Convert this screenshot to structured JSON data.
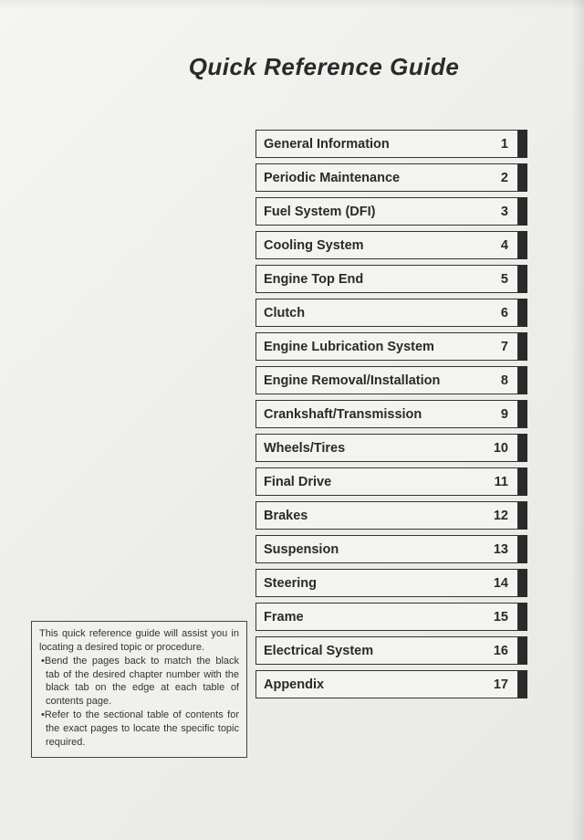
{
  "title": "Quick Reference Guide",
  "toc": [
    {
      "label": "General Information",
      "num": "1"
    },
    {
      "label": "Periodic Maintenance",
      "num": "2"
    },
    {
      "label": "Fuel System (DFI)",
      "num": "3"
    },
    {
      "label": "Cooling System",
      "num": "4"
    },
    {
      "label": "Engine Top End",
      "num": "5"
    },
    {
      "label": "Clutch",
      "num": "6"
    },
    {
      "label": "Engine Lubrication System",
      "num": "7"
    },
    {
      "label": "Engine Removal/Installation",
      "num": "8"
    },
    {
      "label": "Crankshaft/Transmission",
      "num": "9"
    },
    {
      "label": "Wheels/Tires",
      "num": "10"
    },
    {
      "label": "Final Drive",
      "num": "11"
    },
    {
      "label": "Brakes",
      "num": "12"
    },
    {
      "label": "Suspension",
      "num": "13"
    },
    {
      "label": "Steering",
      "num": "14"
    },
    {
      "label": "Frame",
      "num": "15"
    },
    {
      "label": "Electrical System",
      "num": "16"
    },
    {
      "label": "Appendix",
      "num": "17"
    }
  ],
  "note": {
    "intro": "This quick reference guide will assist you in locating a desired topic or procedure.",
    "b1": "•Bend the pages back to match the black tab of the desired chapter number with the black tab on the edge at each table of contents page.",
    "b2": "•Refer to the sectional table of contents for the exact pages to locate the specific topic required."
  },
  "colors": {
    "page_bg": "#ededea",
    "text": "#2a2a2a",
    "border": "#333333",
    "tab": "#2a2a2a"
  }
}
